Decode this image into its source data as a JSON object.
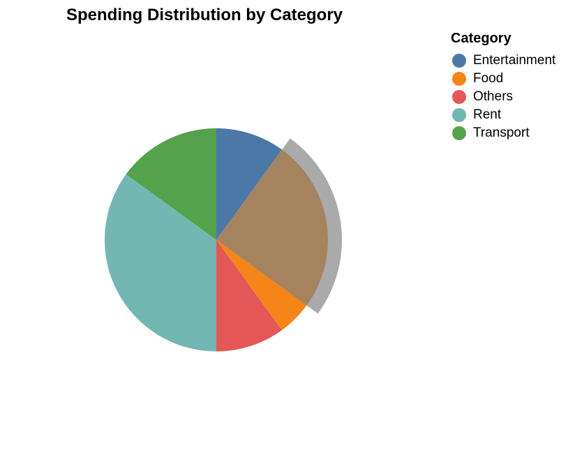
{
  "chart_data": {
    "type": "pie",
    "title": "Spending Distribution by Category",
    "legend_title": "Category",
    "legend_position": "top-right",
    "categories": [
      "Entertainment",
      "Food",
      "Others",
      "Rent",
      "Transport"
    ],
    "slices": [
      {
        "category": "Entertainment",
        "value": 10,
        "color": "#4c78a8"
      },
      {
        "category": "Food",
        "value": 25,
        "color": "#f58518",
        "highlighted": true,
        "highlight_color": "#a5835e",
        "highlight_ring_color": "#aaaaaa"
      },
      {
        "category": "Food",
        "value": 5,
        "color": "#f58518"
      },
      {
        "category": "Others",
        "value": 10,
        "color": "#e45756"
      },
      {
        "category": "Rent",
        "value": 35,
        "color": "#72b7b2"
      },
      {
        "category": "Transport",
        "value": 15,
        "color": "#54a24b"
      }
    ],
    "legend": [
      {
        "label": "Entertainment",
        "color": "#4c78a8"
      },
      {
        "label": "Food",
        "color": "#f58518"
      },
      {
        "label": "Others",
        "color": "#e45756"
      },
      {
        "label": "Rent",
        "color": "#72b7b2"
      },
      {
        "label": "Transport",
        "color": "#54a24b"
      }
    ]
  }
}
